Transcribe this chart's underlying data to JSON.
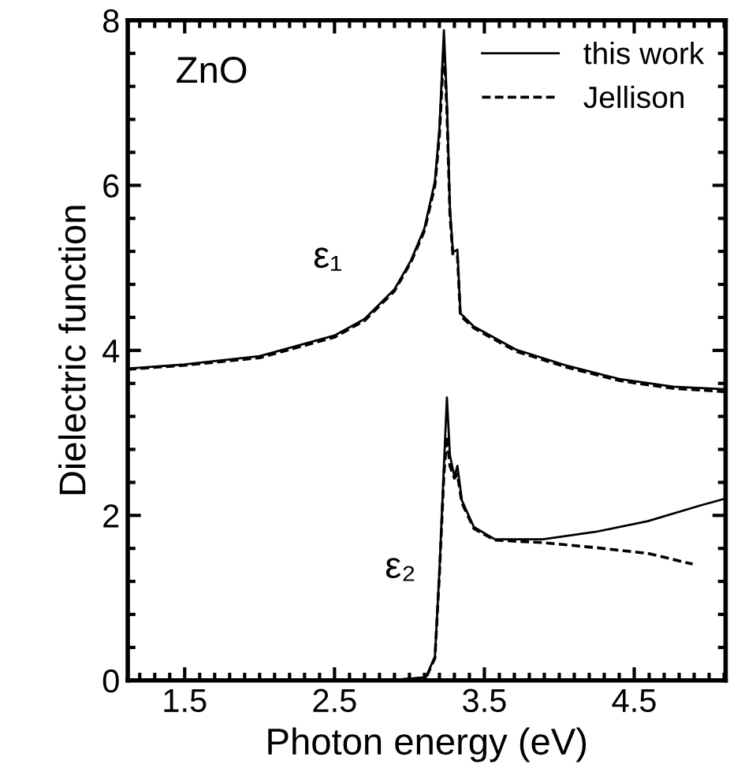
{
  "chart_data": {
    "type": "line",
    "xlabel": "Photon energy (eV)",
    "ylabel": "Dielectric function",
    "xlim": [
      1.12,
      5.11
    ],
    "ylim": [
      0,
      8
    ],
    "xticks": [
      1.5,
      2.5,
      3.5,
      4.5
    ],
    "yticks": [
      0,
      2,
      4,
      6,
      8
    ],
    "grid": false,
    "legend": "top right",
    "marker": "none",
    "annotations": [
      "ZnO",
      "ε₁",
      "ε₂"
    ],
    "series": [
      {
        "name": "this work",
        "color": "#000000",
        "line_style": "solid",
        "x": [
          1.12,
          1.5,
          2.0,
          2.5,
          2.7,
          2.9,
          3.01,
          3.1,
          3.17,
          3.2,
          3.23,
          3.25,
          3.27,
          3.29,
          3.32,
          3.34,
          3.43,
          3.71,
          4.06,
          4.41,
          4.76,
          5.1
        ],
        "values": [
          3.78,
          3.83,
          3.93,
          4.18,
          4.38,
          4.74,
          5.09,
          5.48,
          6.05,
          6.69,
          7.88,
          7.01,
          5.73,
          5.19,
          5.22,
          4.45,
          4.29,
          4.01,
          3.81,
          3.65,
          3.56,
          3.53
        ]
      },
      {
        "color": "#000000",
        "line_style": "solid",
        "x": [
          2.87,
          3.11,
          3.17,
          3.2,
          3.23,
          3.25,
          3.27,
          3.3,
          3.32,
          3.35,
          3.43,
          3.57,
          3.89,
          4.24,
          4.59,
          4.94,
          5.1
        ],
        "values": [
          0.0,
          0.04,
          0.29,
          1.32,
          2.6,
          3.43,
          2.73,
          2.47,
          2.6,
          2.18,
          1.86,
          1.71,
          1.71,
          1.8,
          1.93,
          2.12,
          2.2
        ]
      },
      {
        "name": "Jellison",
        "color": "#000000",
        "line_style": "dashed",
        "x": [
          1.12,
          1.5,
          2.0,
          2.5,
          2.7,
          2.9,
          3.01,
          3.1,
          3.17,
          3.2,
          3.23,
          3.25,
          3.27,
          3.29,
          3.32,
          3.34,
          3.43,
          3.71,
          4.06,
          4.41,
          4.76,
          5.1
        ],
        "values": [
          3.77,
          3.82,
          3.91,
          4.16,
          4.36,
          4.72,
          5.07,
          5.45,
          6.0,
          6.6,
          7.7,
          6.9,
          5.65,
          5.15,
          5.15,
          4.42,
          4.27,
          3.99,
          3.79,
          3.63,
          3.54,
          3.5
        ]
      },
      {
        "color": "#000000",
        "line_style": "dashed",
        "x": [
          2.87,
          3.11,
          3.17,
          3.2,
          3.23,
          3.25,
          3.27,
          3.3,
          3.32,
          3.35,
          3.43,
          3.57,
          3.89,
          4.24,
          4.59,
          4.89
        ],
        "values": [
          0.0,
          0.03,
          0.27,
          1.28,
          2.5,
          2.96,
          2.6,
          2.45,
          2.5,
          2.15,
          1.84,
          1.7,
          1.67,
          1.61,
          1.54,
          1.41
        ]
      }
    ]
  }
}
